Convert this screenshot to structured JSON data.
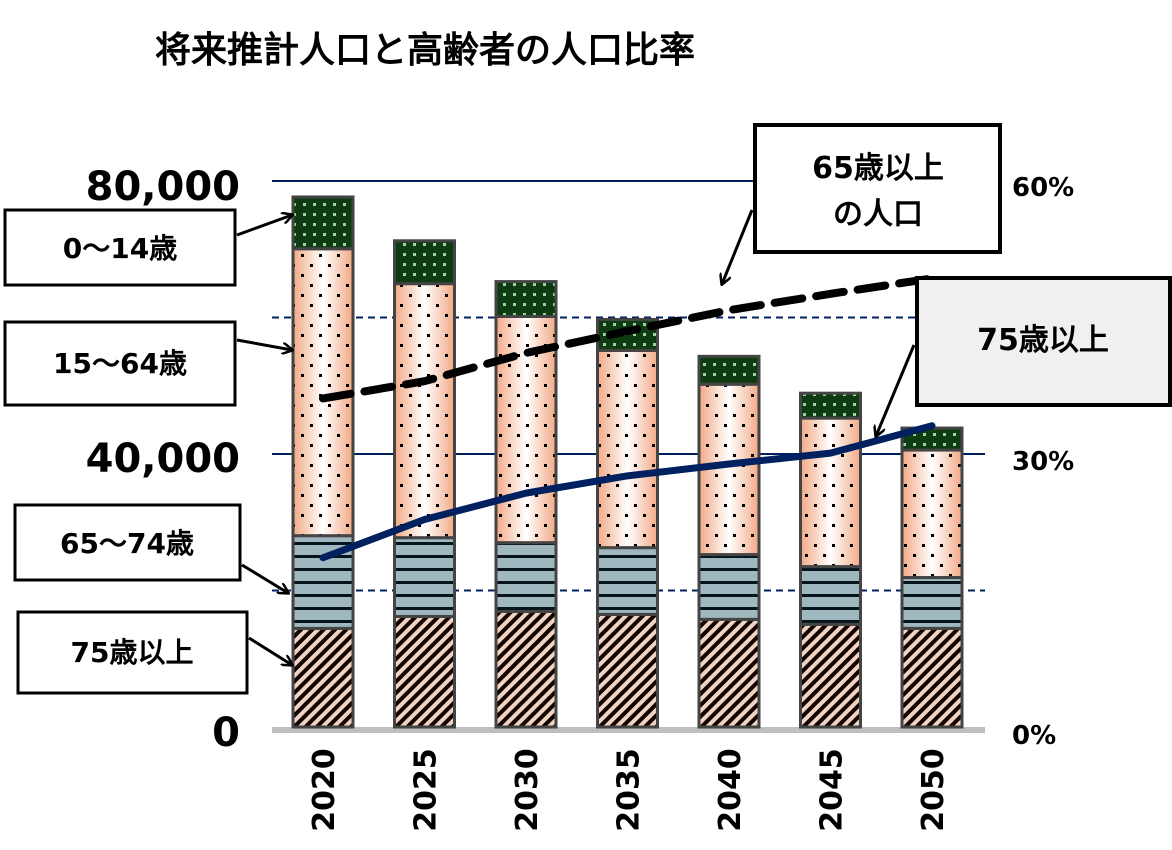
{
  "chart_data": {
    "type": "bar",
    "title": "将来推計人口と高齢者の人口比率",
    "categories": [
      "2020",
      "2025",
      "2030",
      "2035",
      "2040",
      "2045",
      "2050"
    ],
    "stacked": true,
    "y_left": {
      "ylim": [
        0,
        80000
      ],
      "ticks": [
        "0",
        "40,000",
        "80,000"
      ]
    },
    "y_right": {
      "ylim": [
        0,
        60
      ],
      "unit": "%",
      "ticks": [
        "0%",
        "30%",
        "60%"
      ]
    },
    "grid": true,
    "series": [
      {
        "name": "75歳以上",
        "axis": "left",
        "kind": "bar",
        "values": [
          14450,
          16200,
          16930,
          16500,
          15770,
          15040,
          14450
        ],
        "color": "#c98a6a"
      },
      {
        "name": "65〜74歳",
        "axis": "left",
        "kind": "bar",
        "values": [
          13580,
          11540,
          10080,
          9780,
          9490,
          8460,
          7450
        ],
        "color": "#5f8797"
      },
      {
        "name": "15〜64歳",
        "axis": "left",
        "kind": "bar",
        "values": [
          42040,
          37220,
          33140,
          28900,
          24960,
          21760,
          18680
        ],
        "color": "#f4b899"
      },
      {
        "name": "0〜14歳",
        "axis": "left",
        "kind": "bar",
        "values": [
          7590,
          6280,
          5110,
          4530,
          4090,
          3650,
          3220
        ],
        "color": "#1b4d1f"
      },
      {
        "name": "65歳以上の人口",
        "axis": "right",
        "kind": "line",
        "style": "dashed",
        "values": [
          36.1,
          38.0,
          41.1,
          43.5,
          45.8,
          47.6,
          49.3
        ],
        "color": "#000000"
      },
      {
        "name": "75歳以上",
        "axis": "right",
        "kind": "line",
        "style": "solid",
        "values": [
          18.6,
          22.8,
          25.7,
          27.6,
          28.9,
          30.1,
          33.1
        ],
        "color": "#002060"
      }
    ],
    "annotations": {
      "age_0_14": "0〜14歳",
      "age_15_64": "15〜64歳",
      "age_65_74": "65〜74歳",
      "age_75_plus": "75歳以上",
      "line_65_plus_1": "65歳以上",
      "line_65_plus_2": "の人口",
      "line_75_plus": "75歳以上"
    }
  }
}
